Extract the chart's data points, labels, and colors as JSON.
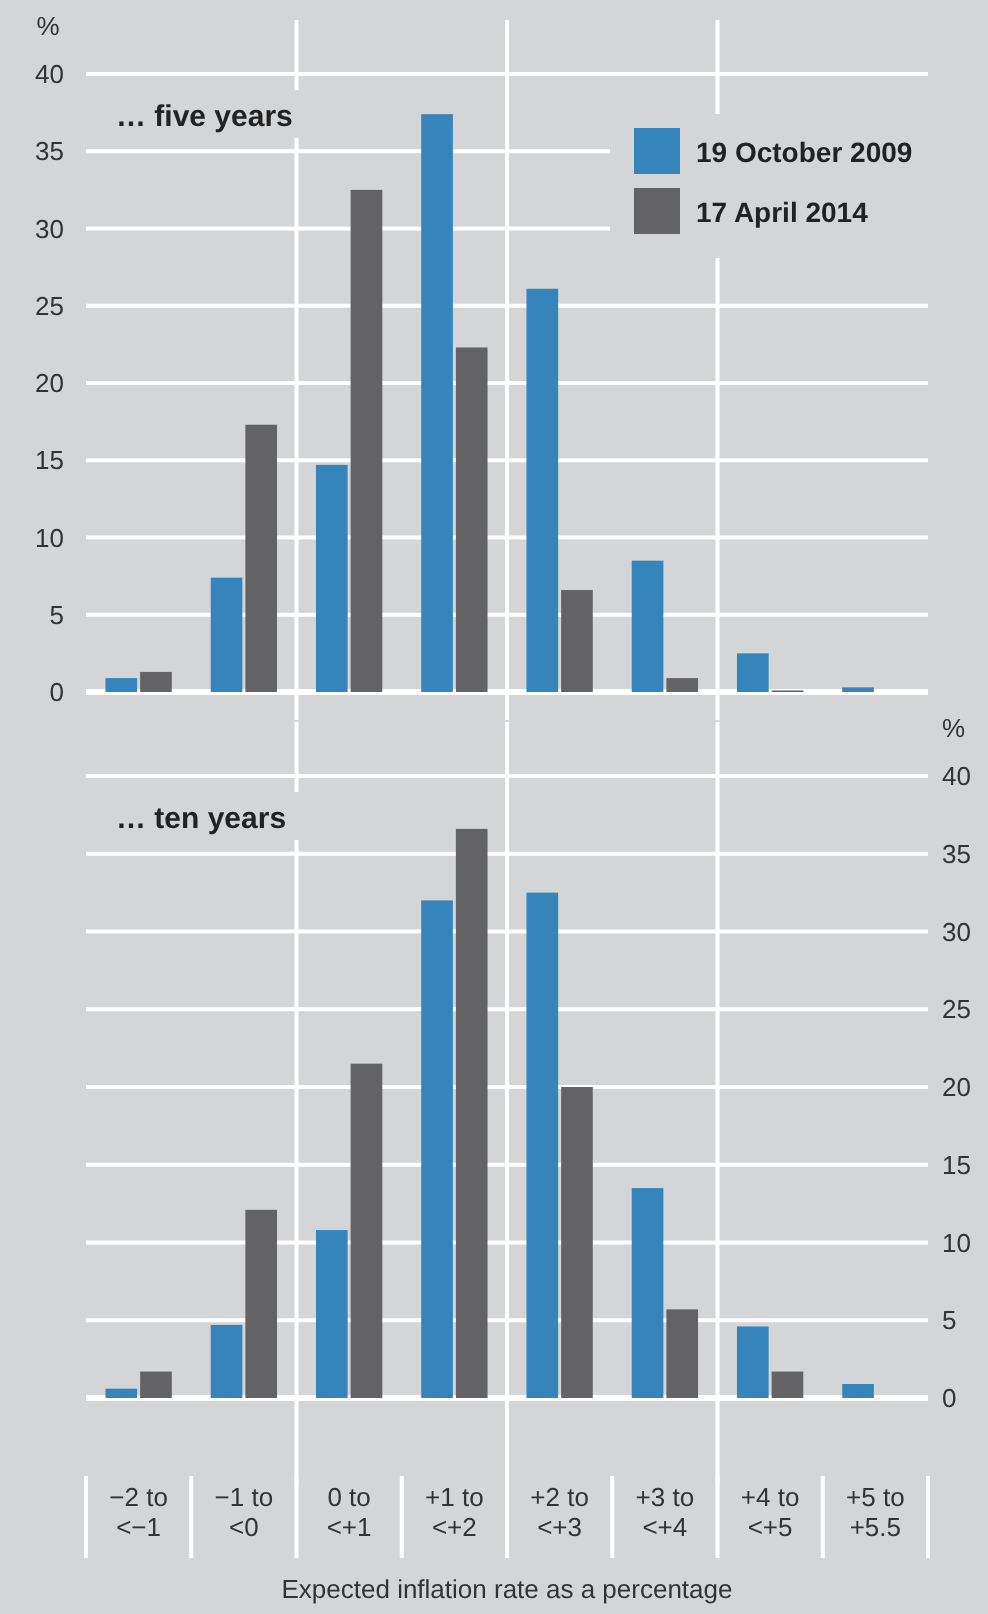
{
  "chart_data": [
    {
      "type": "bar",
      "title": "… five years",
      "ylabel": "%",
      "categories": [
        null,
        null,
        null,
        null,
        null,
        null,
        null,
        null
      ],
      "series": [
        {
          "name": "19 October 2009",
          "color": "#3584bc",
          "values": [
            0.9,
            7.4,
            14.7,
            37.4,
            26.1,
            8.5,
            2.5,
            0.3
          ]
        },
        {
          "name": "17 April 2014",
          "color": "#636366",
          "values": [
            1.3,
            17.3,
            32.5,
            22.3,
            6.6,
            0.9,
            0.1,
            0
          ]
        }
      ],
      "ylim": [
        0,
        40
      ],
      "yticks": [
        0,
        5,
        10,
        15,
        20,
        25,
        30,
        35,
        40
      ],
      "grid": "y",
      "legend": "top right",
      "tick_labels": "y"
    },
    {
      "type": "bar",
      "title": "… ten years",
      "ylabel": "%",
      "xlabel": "Expected inflation rate as a percentage",
      "categories": [
        "−2 to <−1",
        "−1 to <0",
        "0 to <+1",
        "+1 to <+2",
        "+2 to <+3",
        "+3 to <+4",
        "+4 to <+5",
        "+5 to +5.5"
      ],
      "series": [
        {
          "color": "#3584bc",
          "values": [
            0.6,
            4.7,
            10.8,
            32.0,
            32.5,
            13.5,
            4.6,
            0.9
          ]
        },
        {
          "color": "#636366",
          "values": [
            1.7,
            12.1,
            21.5,
            36.6,
            20.0,
            5.7,
            1.7,
            0
          ]
        }
      ],
      "ylim": [
        0,
        40
      ],
      "yticks": [
        0,
        5,
        10,
        15,
        20,
        25,
        30,
        35,
        40
      ],
      "grid": "y"
    }
  ]
}
